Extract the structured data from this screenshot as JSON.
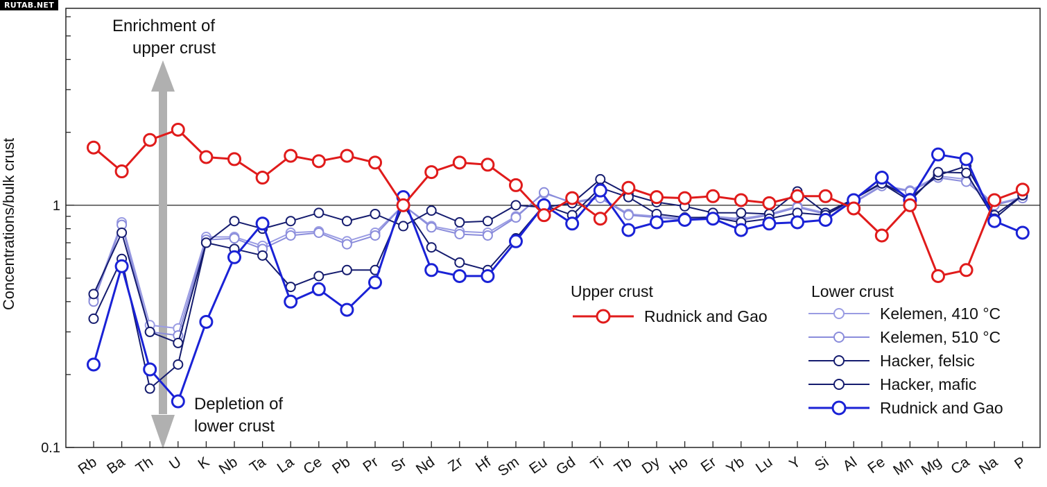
{
  "watermark": "RUTAB.NET",
  "chart_data": {
    "type": "line",
    "ylabel": "Concentrations/bulk crust",
    "yscale": "log",
    "ylim": [
      0.1,
      6.5
    ],
    "yticks": [
      {
        "value": 0.1,
        "label": "0.1"
      },
      {
        "value": 1,
        "label": "1"
      }
    ],
    "reference_line": 1,
    "categories": [
      "Rb",
      "Ba",
      "Th",
      "U",
      "K",
      "Nb",
      "Ta",
      "La",
      "Ce",
      "Pb",
      "Pr",
      "Sr",
      "Nd",
      "Zr",
      "Hf",
      "Sm",
      "Eu",
      "Gd",
      "Ti",
      "Tb",
      "Dy",
      "Ho",
      "Er",
      "Yb",
      "Lu",
      "Y",
      "Si",
      "Al",
      "Fe",
      "Mn",
      "Mg",
      "Ca",
      "Na",
      "P"
    ],
    "annotations": {
      "top": [
        "Enrichment of",
        "upper crust"
      ],
      "bottom": [
        "Depletion of",
        "lower crust"
      ]
    },
    "legend": {
      "upper_title": "Upper crust",
      "lower_title": "Lower crust"
    },
    "series": [
      {
        "name": "Kelemen, 410 °C",
        "group": "lower",
        "color": "#9a9ce3",
        "style": "thin",
        "values": [
          0.41,
          0.85,
          0.32,
          0.31,
          0.74,
          0.74,
          0.68,
          0.77,
          0.78,
          0.71,
          0.77,
          1.0,
          0.82,
          0.78,
          0.77,
          0.9,
          1.12,
          1.03,
          1.08,
          0.92,
          0.9,
          0.88,
          0.9,
          0.88,
          0.92,
          0.99,
          0.93,
          1.03,
          1.21,
          1.15,
          1.32,
          1.28,
          1.01,
          1.08
        ]
      },
      {
        "name": "Kelemen, 510 °C",
        "group": "lower",
        "color": "#8a8cdb",
        "style": "thin",
        "values": [
          0.4,
          0.83,
          0.3,
          0.29,
          0.72,
          0.73,
          0.66,
          0.75,
          0.77,
          0.69,
          0.75,
          1.0,
          0.81,
          0.76,
          0.75,
          0.89,
          1.13,
          1.02,
          1.07,
          0.91,
          0.89,
          0.87,
          0.89,
          0.87,
          0.91,
          0.98,
          0.92,
          1.02,
          1.2,
          1.14,
          1.3,
          1.25,
          1.0,
          1.07
        ]
      },
      {
        "name": "Hacker, felsic",
        "group": "lower",
        "color": "#141b6e",
        "style": "thin",
        "values": [
          0.43,
          0.77,
          0.3,
          0.27,
          0.7,
          0.86,
          0.8,
          0.86,
          0.93,
          0.86,
          0.92,
          0.82,
          0.95,
          0.85,
          0.86,
          1.0,
          0.98,
          1.02,
          1.28,
          1.11,
          1.03,
          0.99,
          0.93,
          0.93,
          0.92,
          1.14,
          0.93,
          1.06,
          1.24,
          1.07,
          1.33,
          1.45,
          0.91,
          1.1
        ]
      },
      {
        "name": "Hacker, mafic",
        "group": "lower",
        "color": "#141b6e",
        "style": "thin",
        "values": [
          0.34,
          0.6,
          0.175,
          0.22,
          0.7,
          0.66,
          0.62,
          0.46,
          0.51,
          0.54,
          0.54,
          1.0,
          0.67,
          0.58,
          0.54,
          0.73,
          1.0,
          0.91,
          1.18,
          1.08,
          0.92,
          0.89,
          0.89,
          0.85,
          0.88,
          0.93,
          0.91,
          1.06,
          1.23,
          1.04,
          1.37,
          1.36,
          0.88,
          1.1
        ]
      },
      {
        "name": "Rudnick and Gao",
        "group": "lower",
        "color": "#1a22d6",
        "style": "thick",
        "values": [
          0.22,
          0.56,
          0.21,
          0.155,
          0.33,
          0.61,
          0.84,
          0.4,
          0.45,
          0.37,
          0.48,
          1.08,
          0.54,
          0.51,
          0.51,
          0.71,
          1.0,
          0.84,
          1.15,
          0.79,
          0.85,
          0.87,
          0.88,
          0.79,
          0.84,
          0.85,
          0.87,
          1.05,
          1.3,
          1.05,
          1.62,
          1.55,
          0.86,
          0.77
        ]
      },
      {
        "name": "Rudnick and Gao",
        "group": "upper",
        "color": "#e01b1b",
        "style": "thick",
        "values": [
          1.73,
          1.38,
          1.86,
          2.05,
          1.58,
          1.55,
          1.3,
          1.6,
          1.52,
          1.6,
          1.5,
          1.0,
          1.37,
          1.5,
          1.47,
          1.21,
          0.91,
          1.07,
          0.88,
          1.18,
          1.08,
          1.07,
          1.09,
          1.05,
          1.02,
          1.09,
          1.09,
          0.97,
          0.75,
          1.0,
          0.51,
          0.54,
          1.05,
          1.16
        ]
      }
    ]
  }
}
